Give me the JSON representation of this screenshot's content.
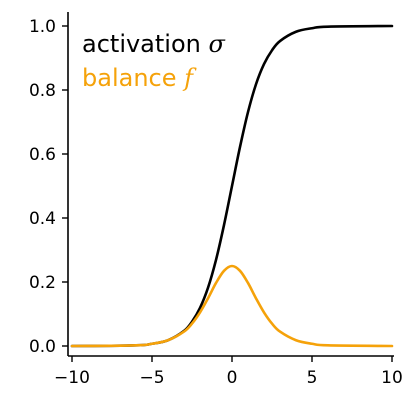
{
  "chart_data": {
    "type": "line",
    "title": "",
    "xlabel": "",
    "ylabel": "",
    "xlim": [
      -10,
      10
    ],
    "ylim": [
      0,
      1
    ],
    "x_ticks": [
      -10,
      -5,
      0,
      5,
      10
    ],
    "x_tick_labels": [
      "−10",
      "−5",
      "0",
      "5",
      "10"
    ],
    "y_ticks": [
      0.0,
      0.2,
      0.4,
      0.6,
      0.8,
      1.0
    ],
    "y_tick_labels": [
      "0.0",
      "0.2",
      "0.4",
      "0.6",
      "0.8",
      "1.0"
    ],
    "grid": false,
    "legend_position": "top-left",
    "series": [
      {
        "name": "activation",
        "symbol": "σ",
        "color": "#000000",
        "x": [
          -10,
          -6,
          -5,
          -4,
          -3,
          -2.5,
          -2,
          -1.5,
          -1,
          -0.5,
          0,
          0.5,
          1,
          1.5,
          2,
          2.5,
          3,
          4,
          5,
          6,
          10
        ],
        "y": [
          0.0,
          0.002,
          0.007,
          0.018,
          0.047,
          0.076,
          0.119,
          0.182,
          0.269,
          0.378,
          0.5,
          0.622,
          0.731,
          0.818,
          0.881,
          0.924,
          0.953,
          0.982,
          0.993,
          0.998,
          1.0
        ]
      },
      {
        "name": "balance",
        "symbol": "f",
        "color": "#f5a20a",
        "x": [
          -10,
          -6,
          -5,
          -4,
          -3,
          -2.5,
          -2,
          -1.5,
          -1,
          -0.5,
          0,
          0.5,
          1,
          1.5,
          2,
          2.5,
          3,
          4,
          5,
          6,
          10
        ],
        "y": [
          0.0,
          0.002,
          0.007,
          0.018,
          0.045,
          0.07,
          0.105,
          0.149,
          0.197,
          0.235,
          0.25,
          0.235,
          0.197,
          0.149,
          0.105,
          0.07,
          0.045,
          0.018,
          0.007,
          0.002,
          0.0
        ]
      }
    ]
  }
}
